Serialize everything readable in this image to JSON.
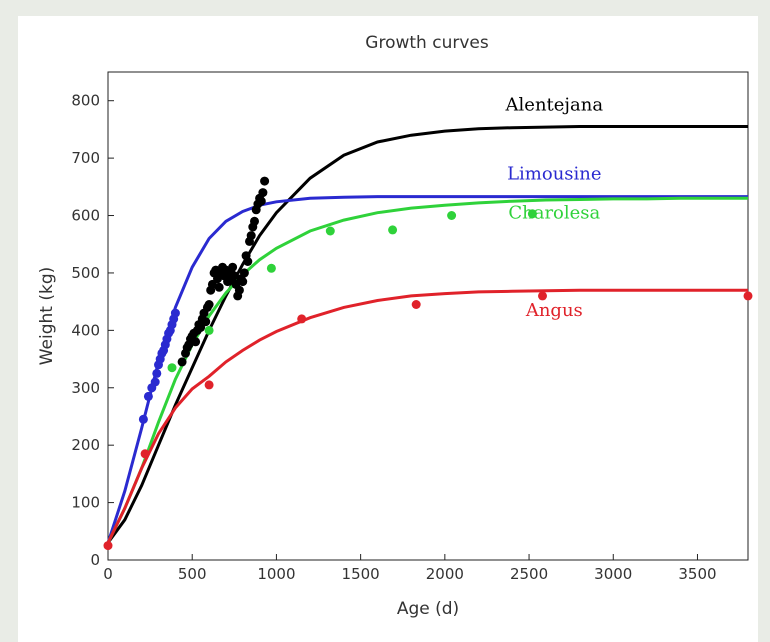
{
  "chart_data": {
    "type": "line",
    "title": "Growth curves",
    "xlabel": "Age (d)",
    "ylabel": "Weight (kg)",
    "xlim": [
      0,
      3800
    ],
    "ylim": [
      0,
      850
    ],
    "xticks": [
      0,
      500,
      1000,
      1500,
      2000,
      2500,
      3000,
      3500
    ],
    "yticks": [
      0,
      100,
      200,
      300,
      400,
      500,
      600,
      700,
      800
    ],
    "grid": false,
    "legend": "labels beside curves",
    "series": [
      {
        "name": "Alentejana",
        "color": "#000000",
        "curve": {
          "x": [
            0,
            100,
            200,
            300,
            400,
            500,
            600,
            700,
            800,
            900,
            1000,
            1200,
            1400,
            1600,
            1800,
            2000,
            2200,
            2400,
            2600,
            2800,
            3000,
            3200,
            3400,
            3600,
            3800
          ],
          "y": [
            30,
            70,
            130,
            200,
            270,
            335,
            400,
            460,
            515,
            565,
            605,
            665,
            705,
            728,
            740,
            747,
            751,
            753,
            754,
            755,
            755,
            755,
            755,
            755,
            755
          ]
        },
        "points": {
          "x": [
            440,
            460,
            470,
            480,
            490,
            500,
            510,
            520,
            530,
            540,
            550,
            560,
            570,
            580,
            590,
            600,
            610,
            620,
            630,
            640,
            650,
            660,
            670,
            680,
            690,
            700,
            710,
            720,
            730,
            740,
            750,
            760,
            770,
            780,
            790,
            800,
            810,
            820,
            830,
            840,
            850,
            860,
            870,
            880,
            890,
            900,
            910,
            920,
            930
          ],
          "y": [
            345,
            360,
            370,
            375,
            385,
            390,
            395,
            380,
            400,
            410,
            405,
            420,
            430,
            415,
            440,
            445,
            470,
            480,
            500,
            505,
            490,
            475,
            500,
            510,
            495,
            505,
            485,
            490,
            500,
            510,
            495,
            480,
            460,
            470,
            490,
            485,
            500,
            530,
            520,
            555,
            565,
            580,
            590,
            610,
            620,
            630,
            625,
            640,
            660
          ]
        }
      },
      {
        "name": "Limousine",
        "color": "#2a2ad0",
        "curve": {
          "x": [
            0,
            100,
            200,
            300,
            400,
            500,
            600,
            700,
            800,
            900,
            1000,
            1200,
            1400,
            1600,
            1800,
            2000,
            2200,
            2400,
            2600,
            2800,
            3000,
            3200,
            3400,
            3600,
            3800
          ],
          "y": [
            30,
            120,
            230,
            345,
            440,
            510,
            560,
            590,
            607,
            618,
            624,
            630,
            632,
            633,
            633,
            633,
            633,
            633,
            633,
            633,
            633,
            633,
            633,
            633,
            633
          ]
        },
        "points": {
          "x": [
            210,
            240,
            260,
            280,
            290,
            300,
            310,
            320,
            330,
            340,
            350,
            360,
            370,
            380,
            390,
            400
          ],
          "y": [
            245,
            285,
            300,
            310,
            325,
            340,
            350,
            360,
            365,
            375,
            385,
            395,
            400,
            410,
            420,
            430
          ]
        }
      },
      {
        "name": "Charolesa",
        "color": "#2fd23a",
        "curve": {
          "x": [
            0,
            100,
            200,
            300,
            400,
            500,
            600,
            700,
            800,
            900,
            1000,
            1200,
            1400,
            1600,
            1800,
            2000,
            2200,
            2400,
            2600,
            2800,
            3000,
            3200,
            3400,
            3600,
            3800
          ],
          "y": [
            30,
            90,
            160,
            240,
            315,
            375,
            425,
            465,
            497,
            523,
            543,
            573,
            592,
            605,
            613,
            618,
            622,
            625,
            627,
            628,
            629,
            629,
            630,
            630,
            630
          ]
        },
        "points": {
          "x": [
            380,
            600,
            970,
            1320,
            1690,
            2040,
            2520
          ],
          "y": [
            335,
            400,
            508,
            573,
            575,
            600,
            603
          ]
        }
      },
      {
        "name": "Angus",
        "color": "#e0222a",
        "curve": {
          "x": [
            0,
            100,
            200,
            300,
            400,
            500,
            600,
            700,
            800,
            900,
            1000,
            1200,
            1400,
            1600,
            1800,
            2000,
            2200,
            2400,
            2600,
            2800,
            3000,
            3200,
            3400,
            3600,
            3800
          ],
          "y": [
            30,
            90,
            160,
            220,
            265,
            298,
            320,
            345,
            365,
            383,
            398,
            422,
            440,
            452,
            460,
            464,
            467,
            468,
            469,
            470,
            470,
            470,
            470,
            470,
            470
          ]
        },
        "points": {
          "x": [
            0,
            220,
            600,
            1150,
            1830,
            2580,
            3800
          ],
          "y": [
            25,
            185,
            305,
            420,
            445,
            460,
            460
          ]
        }
      }
    ]
  }
}
